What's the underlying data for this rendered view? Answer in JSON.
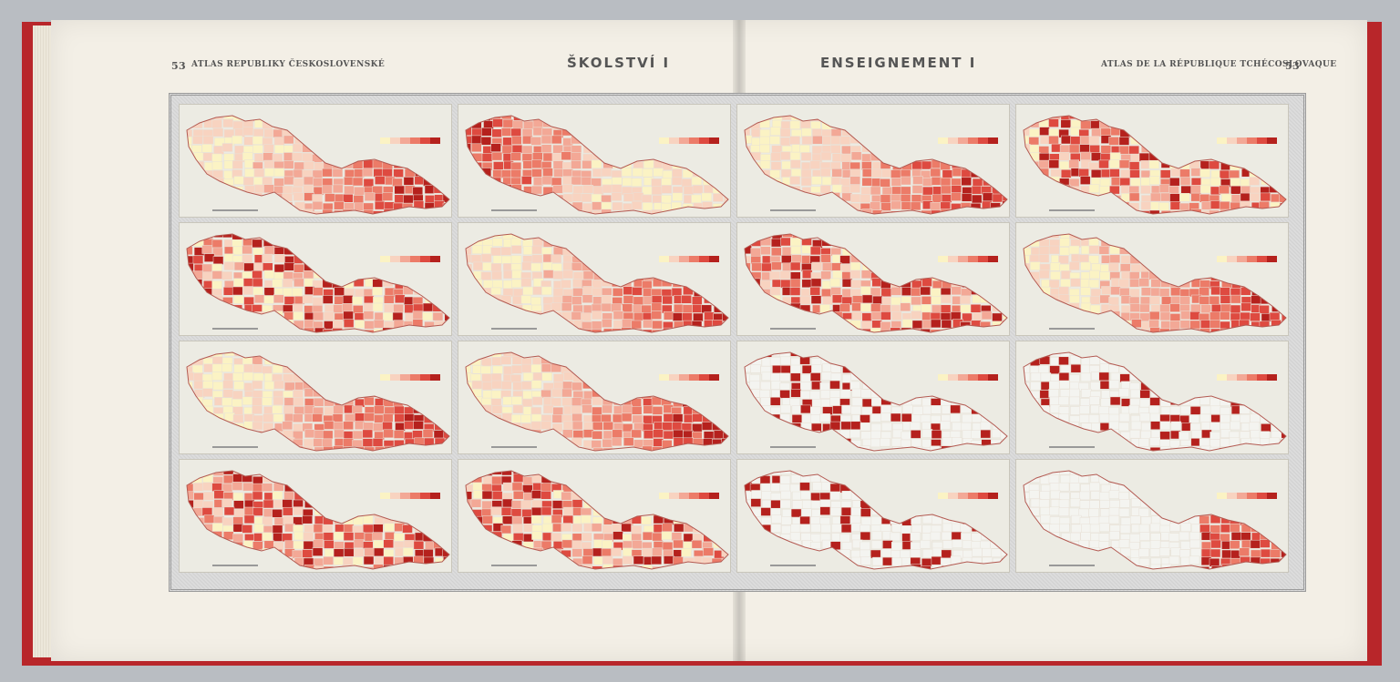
{
  "header": {
    "left_page_number": "53",
    "left_atlas_title": "ATLAS REPUBLIKY ČESKOSLOVENSKÉ",
    "left_section_title": "ŠKOLSTVÍ I",
    "right_section_title": "ENSEIGNEMENT I",
    "right_atlas_title": "ATLAS DE LA RÉPUBLIQUE TCHÉCOSLOVAQUE",
    "right_page_number": "53"
  },
  "colors": {
    "cover": "#b8262a",
    "paper": "#f3efe6",
    "ramp": [
      "#fbf3c4",
      "#f8d3c0",
      "#f3a896",
      "#ec7b68",
      "#de4a40",
      "#b5211d"
    ],
    "white_region": "#f4f4f0"
  },
  "map_panels": [
    {
      "row": 0,
      "col": 0,
      "title": "",
      "pattern": "east"
    },
    {
      "row": 0,
      "col": 1,
      "title": "",
      "pattern": "west"
    },
    {
      "row": 0,
      "col": 2,
      "title": "",
      "pattern": "east"
    },
    {
      "row": 0,
      "col": 3,
      "title": "",
      "pattern": "mixed"
    },
    {
      "row": 1,
      "col": 0,
      "title": "",
      "pattern": "mixed"
    },
    {
      "row": 1,
      "col": 1,
      "title": "",
      "pattern": "east"
    },
    {
      "row": 1,
      "col": 2,
      "title": "",
      "pattern": "mixed"
    },
    {
      "row": 1,
      "col": 3,
      "title": "",
      "pattern": "east"
    },
    {
      "row": 2,
      "col": 0,
      "title": "",
      "pattern": "east"
    },
    {
      "row": 2,
      "col": 1,
      "title": "",
      "pattern": "east"
    },
    {
      "row": 2,
      "col": 2,
      "title": "",
      "pattern": "sparse"
    },
    {
      "row": 2,
      "col": 3,
      "title": "",
      "pattern": "sparse"
    },
    {
      "row": 3,
      "col": 0,
      "title": "",
      "pattern": "mixed"
    },
    {
      "row": 3,
      "col": 1,
      "title": "",
      "pattern": "mixed"
    },
    {
      "row": 3,
      "col": 2,
      "title": "",
      "pattern": "sparse"
    },
    {
      "row": 3,
      "col": 3,
      "title": "",
      "pattern": "far-east"
    }
  ]
}
